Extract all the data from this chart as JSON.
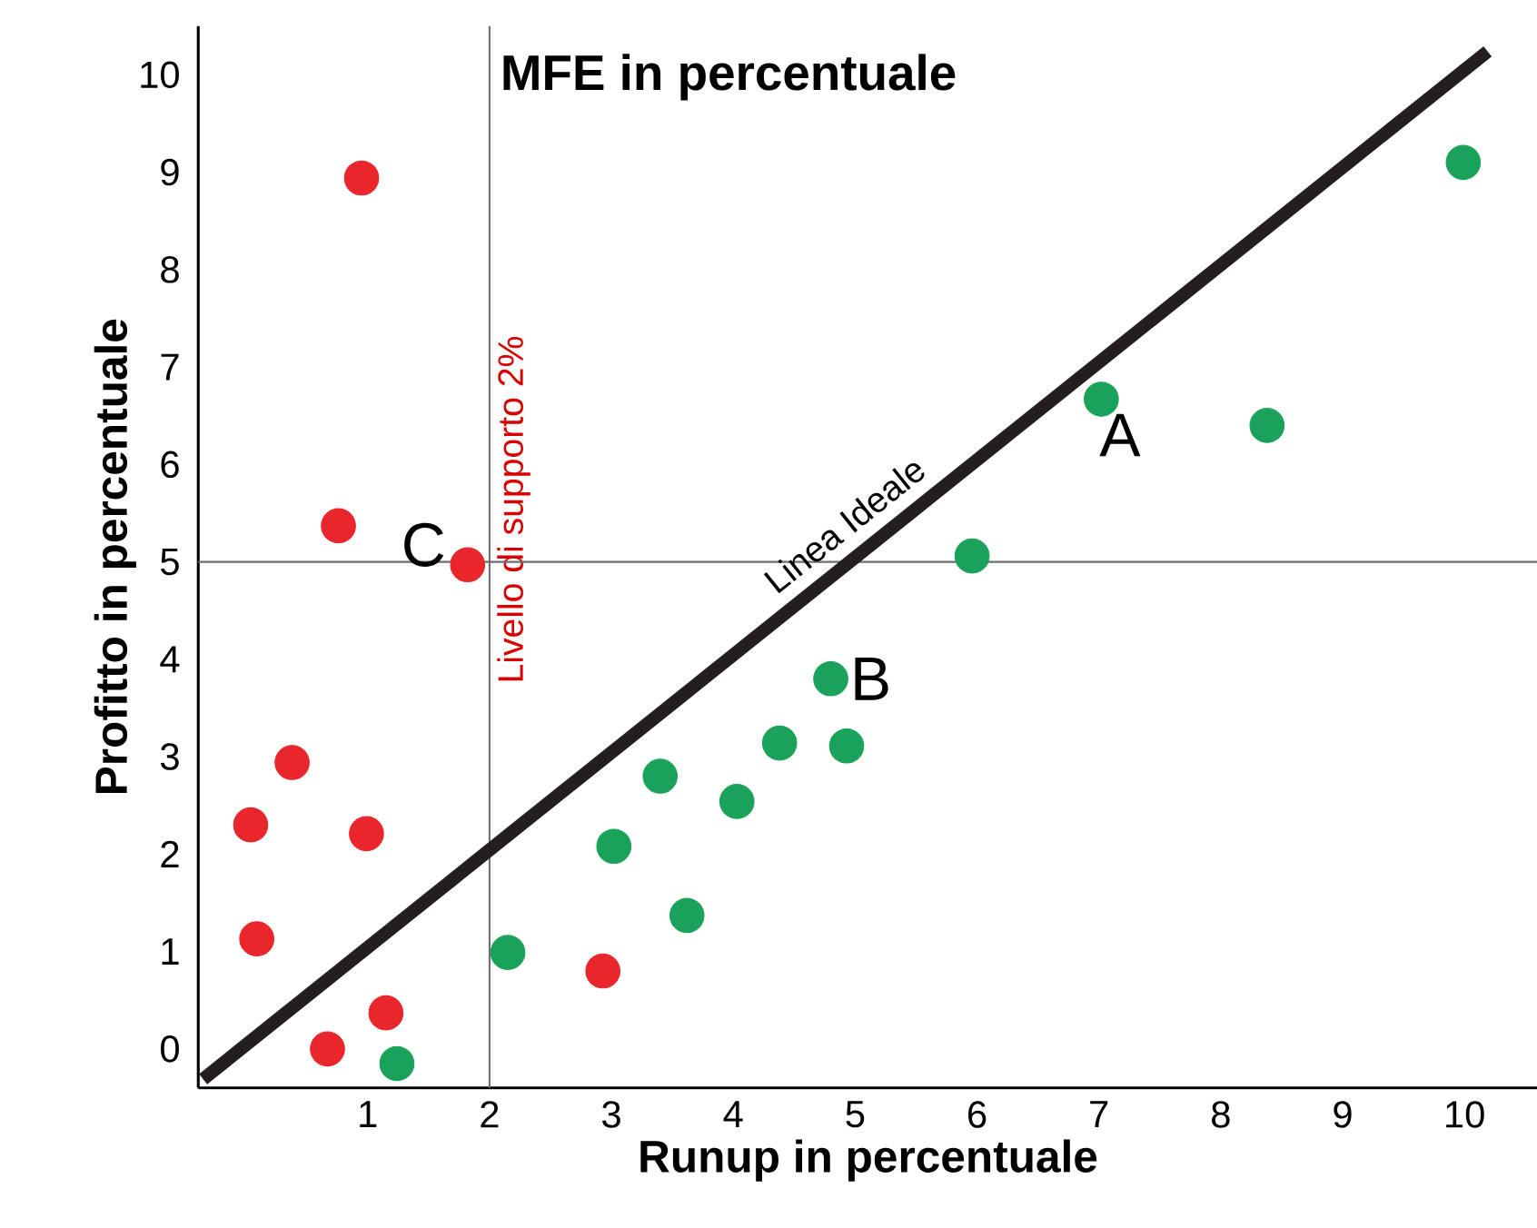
{
  "chart_data": {
    "type": "scatter",
    "title": "MFE in percentuale",
    "xlabel": "Runup in percentuale",
    "ylabel": "Profitto in percentuale",
    "xlim": [
      -0.39,
      10.6
    ],
    "ylim": [
      -0.4,
      10.5
    ],
    "xticks": [
      1,
      2,
      3,
      4,
      5,
      6,
      7,
      8,
      9,
      10
    ],
    "yticks": [
      0,
      1,
      2,
      3,
      4,
      5,
      6,
      7,
      8,
      9,
      10
    ],
    "grid": false,
    "series": [
      {
        "color": "#e8262b",
        "marker": "circle",
        "x": [
          0.95,
          0.76,
          1.82,
          0.38,
          0.04,
          0.99,
          0.09,
          2.93,
          1.15,
          0.67
        ],
        "values": [
          8.94,
          5.37,
          4.97,
          2.94,
          2.3,
          2.21,
          1.13,
          0.8,
          0.37,
          0.0
        ]
      },
      {
        "color": "#1aa25a",
        "marker": "circle",
        "x": [
          9.99,
          7.02,
          8.38,
          5.96,
          4.8,
          4.38,
          4.93,
          3.4,
          4.03,
          3.02,
          3.62,
          2.15,
          1.24
        ],
        "values": [
          9.1,
          6.67,
          6.4,
          5.06,
          3.8,
          3.14,
          3.11,
          2.8,
          2.54,
          2.08,
          1.37,
          0.99,
          -0.15
        ]
      },
      {
        "type": "line",
        "name": "Linea Ideale",
        "color": "#231f20",
        "marker": "none",
        "x": [
          -0.35,
          10.19
        ],
        "values": [
          -0.31,
          10.24
        ]
      }
    ],
    "ref_lines": [
      {
        "axis": "x",
        "value": 2,
        "label": "Livello di supporto 2%",
        "color": "#6d6e71"
      },
      {
        "axis": "y",
        "value": 5,
        "color": "#6d6e71"
      }
    ],
    "annotations": [
      {
        "text": "A",
        "x": 7.02,
        "y": 6.67
      },
      {
        "text": "B",
        "x": 4.8,
        "y": 3.8
      },
      {
        "text": "C",
        "x": 1.82,
        "y": 4.97
      }
    ]
  }
}
